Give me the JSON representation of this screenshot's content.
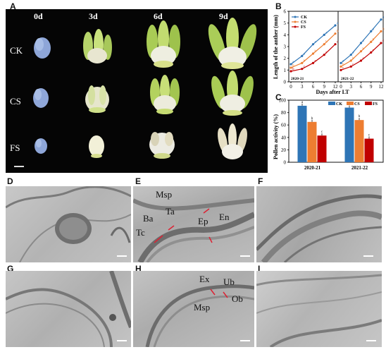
{
  "panel_letters": [
    "A",
    "B",
    "C",
    "D",
    "E",
    "F",
    "G",
    "H",
    "I"
  ],
  "panel_a": {
    "columns": [
      "0d",
      "3d",
      "6d",
      "9d"
    ],
    "rows": [
      "CK",
      "CS",
      "FS"
    ]
  },
  "panel_b": {
    "ylabel": "Length of the anther (mm)",
    "xlabel": "Days after LT",
    "left_year": "2020-21",
    "right_year": "2021-22",
    "legend": [
      "CK",
      "CS",
      "FS"
    ],
    "colors": {
      "CK": "#2e75b6",
      "CS": "#ed7d31",
      "FS": "#c00000"
    }
  },
  "panel_c": {
    "ylabel": "Pollen activity (%)",
    "legend": [
      "CK",
      "CS",
      "FS"
    ]
  },
  "em_labels": {
    "E": [
      "Msp",
      "Ta",
      "Ba",
      "Tc",
      "Ep",
      "En"
    ],
    "H": [
      "Ex",
      "Ub",
      "Ob",
      "Msp"
    ]
  },
  "chart_data": [
    {
      "type": "line",
      "panel": "B-left",
      "title": "2020-21",
      "xlabel": "Days after LT",
      "ylabel": "Length of the anther (mm)",
      "x": [
        0,
        3,
        6,
        9,
        12
      ],
      "ylim": [
        0,
        6
      ],
      "xticks": [
        "0",
        "3",
        "6",
        "9",
        "12"
      ],
      "yticks": [
        "0",
        "1",
        "2",
        "3",
        "4",
        "5",
        "6"
      ],
      "series": [
        {
          "name": "CK",
          "values": [
            1.5,
            2.2,
            3.2,
            4.0,
            4.8
          ],
          "letters": [
            "a",
            "a",
            "a",
            "a",
            "a"
          ]
        },
        {
          "name": "CS",
          "values": [
            1.2,
            1.6,
            2.4,
            3.2,
            4.1
          ],
          "letters": [
            "b",
            "b",
            "b",
            "b",
            "b"
          ]
        },
        {
          "name": "FS",
          "values": [
            0.9,
            1.1,
            1.6,
            2.3,
            3.2
          ],
          "letters": [
            "b",
            "c",
            "c",
            "c",
            "c"
          ]
        }
      ]
    },
    {
      "type": "line",
      "panel": "B-right",
      "title": "2021-22",
      "xlabel": "Days after LT",
      "x": [
        0,
        3,
        6,
        9,
        12
      ],
      "ylim": [
        0,
        6
      ],
      "xticks": [
        "0",
        "3",
        "6",
        "9",
        "12"
      ],
      "series": [
        {
          "name": "CK",
          "values": [
            1.6,
            2.3,
            3.3,
            4.3,
            5.3
          ],
          "letters": [
            "a",
            "a",
            "a",
            "a",
            "a"
          ]
        },
        {
          "name": "CS",
          "values": [
            1.3,
            1.8,
            2.6,
            3.4,
            4.3
          ],
          "letters": [
            "b",
            "b",
            "b",
            "b",
            "b"
          ]
        },
        {
          "name": "FS",
          "values": [
            1.0,
            1.3,
            1.8,
            2.5,
            3.3
          ],
          "letters": [
            "c",
            "c",
            "c",
            "c",
            "c"
          ]
        }
      ]
    },
    {
      "type": "bar",
      "panel": "C",
      "categories": [
        "2020-21",
        "2021-22"
      ],
      "ylabel": "Pollen activity (%)",
      "ylim": [
        0,
        100
      ],
      "yticks": [
        "0",
        "20",
        "40",
        "60",
        "80",
        "100"
      ],
      "series": [
        {
          "name": "CK",
          "values": [
            91,
            88
          ],
          "letters": [
            "a",
            "a"
          ]
        },
        {
          "name": "CS",
          "values": [
            65,
            68
          ],
          "letters": [
            "b",
            "b"
          ]
        },
        {
          "name": "FS",
          "values": [
            43,
            38
          ],
          "letters": [
            "c",
            "c"
          ]
        }
      ]
    }
  ]
}
